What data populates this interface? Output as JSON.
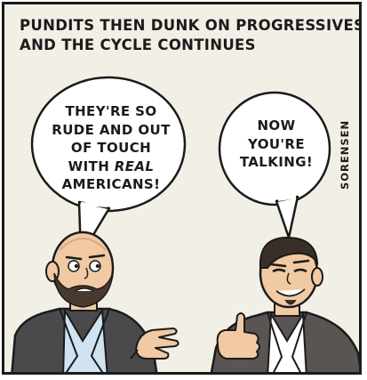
{
  "caption": {
    "line1": "PUNDITS THEN DUNK ON PROGRESSIVES",
    "line2": "AND THE CYCLE CONTINUES"
  },
  "left_bubble": {
    "line1": "THEY'RE SO",
    "line2": "RUDE AND OUT",
    "line3": "OF TOUCH",
    "line4_prefix": "WITH ",
    "line4_emphasis": "REAL",
    "line5": "AMERICANS!"
  },
  "right_bubble": {
    "line1": "NOW",
    "line2": "YOU'RE",
    "line3": "TALKING!"
  },
  "signature": "SORENSEN",
  "icons": [
    "speech-bubble",
    "pundit-figure",
    "thumbs-up"
  ],
  "colors": {
    "background": "#f2efe6",
    "ink": "#1b1b1b",
    "skin": "#f1c9a3",
    "suit": "#4a4a4c",
    "shirt_left": "#cfe3f1"
  }
}
